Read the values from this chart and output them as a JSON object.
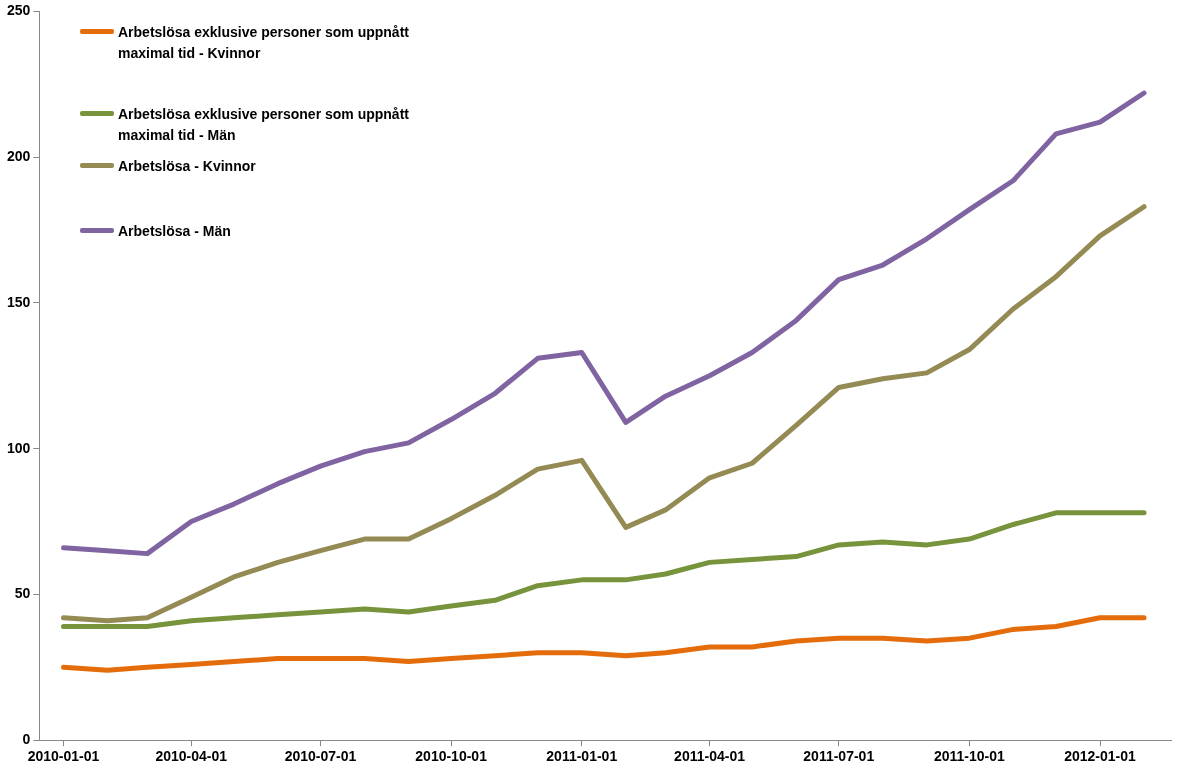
{
  "chart_data": {
    "type": "line",
    "x": [
      "2010-01",
      "2010-02",
      "2010-03",
      "2010-04",
      "2010-05",
      "2010-06",
      "2010-07",
      "2010-08",
      "2010-09",
      "2010-10",
      "2010-11",
      "2010-12",
      "2011-01",
      "2011-02",
      "2011-03",
      "2011-04",
      "2011-05",
      "2011-06",
      "2011-07",
      "2011-08",
      "2011-09",
      "2011-10",
      "2011-11",
      "2011-12",
      "2012-01",
      "2012-02"
    ],
    "xlim": [
      "2009-12-15",
      "2012-02-20"
    ],
    "xticks": [
      {
        "value": "2010-01-01",
        "label": "2010-01-01"
      },
      {
        "value": "2010-04-01",
        "label": "2010-04-01"
      },
      {
        "value": "2010-07-01",
        "label": "2010-07-01"
      },
      {
        "value": "2010-10-01",
        "label": "2010-10-01"
      },
      {
        "value": "2011-01-01",
        "label": "2011-01-01"
      },
      {
        "value": "2011-04-01",
        "label": "2011-04-01"
      },
      {
        "value": "2011-07-01",
        "label": "2011-07-01"
      },
      {
        "value": "2011-10-01",
        "label": "2011-10-01"
      },
      {
        "value": "2012-01-01",
        "label": "2012-01-01"
      }
    ],
    "ylim": [
      0,
      250
    ],
    "yticks": [
      0,
      50,
      100,
      150,
      200,
      250
    ],
    "grid": false,
    "legend": "top left",
    "marker": "none",
    "line_style": "solid",
    "series": [
      {
        "name": "Arbetslösa exklusive personer som uppnått maximal tid - Kvinnor",
        "color": "#e46c0a",
        "values": [
          25,
          24,
          25,
          26,
          27,
          28,
          28,
          28,
          27,
          28,
          29,
          30,
          30,
          29,
          30,
          32,
          32,
          34,
          35,
          35,
          34,
          35,
          38,
          39,
          42,
          42
        ]
      },
      {
        "name": "Arbetslösa exklusive personer som uppnått maximal tid - Män",
        "color": "#77933c",
        "values": [
          39,
          39,
          39,
          41,
          42,
          43,
          44,
          45,
          44,
          46,
          48,
          53,
          55,
          55,
          57,
          61,
          62,
          63,
          67,
          68,
          67,
          69,
          74,
          78,
          78,
          78
        ]
      },
      {
        "name": "Arbetslösa - Kvinnor",
        "color": "#948a54",
        "values": [
          42,
          41,
          42,
          49,
          56,
          61,
          65,
          69,
          69,
          76,
          84,
          93,
          96,
          73,
          79,
          90,
          95,
          108,
          121,
          124,
          126,
          134,
          148,
          159,
          173,
          183
        ]
      },
      {
        "name": "Arbetslösa - Män",
        "color": "#8064a2",
        "values": [
          66,
          65,
          64,
          75,
          81,
          88,
          94,
          99,
          102,
          110,
          119,
          131,
          133,
          109,
          118,
          125,
          133,
          144,
          158,
          163,
          172,
          182,
          192,
          208,
          212,
          222
        ]
      }
    ]
  }
}
